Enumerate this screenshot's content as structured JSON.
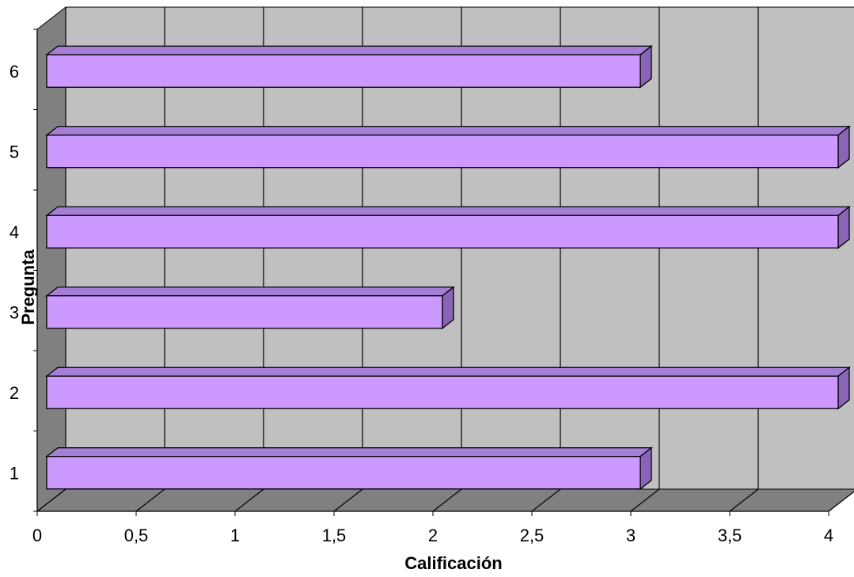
{
  "chart_data": {
    "type": "bar",
    "orientation": "horizontal",
    "style": "3d",
    "title": "",
    "xlabel": "Calificación",
    "ylabel": "Pregunta",
    "categories": [
      "1",
      "2",
      "3",
      "4",
      "5",
      "6"
    ],
    "values": [
      3,
      4,
      2,
      4,
      4,
      3
    ],
    "xlim": [
      0,
      4
    ],
    "xticks": [
      "0",
      "0,5",
      "1",
      "1,5",
      "2",
      "2,5",
      "3",
      "3,5",
      "4"
    ],
    "grid": true,
    "legend": "none",
    "colors": {
      "bar_front": "#CC99FF",
      "bar_top": "#A57FD6",
      "bar_side": "#8A64B8",
      "wall_back": "#C0C0C0",
      "wall_left": "#808080",
      "floor": "#808080",
      "gridline": "#000000"
    }
  }
}
